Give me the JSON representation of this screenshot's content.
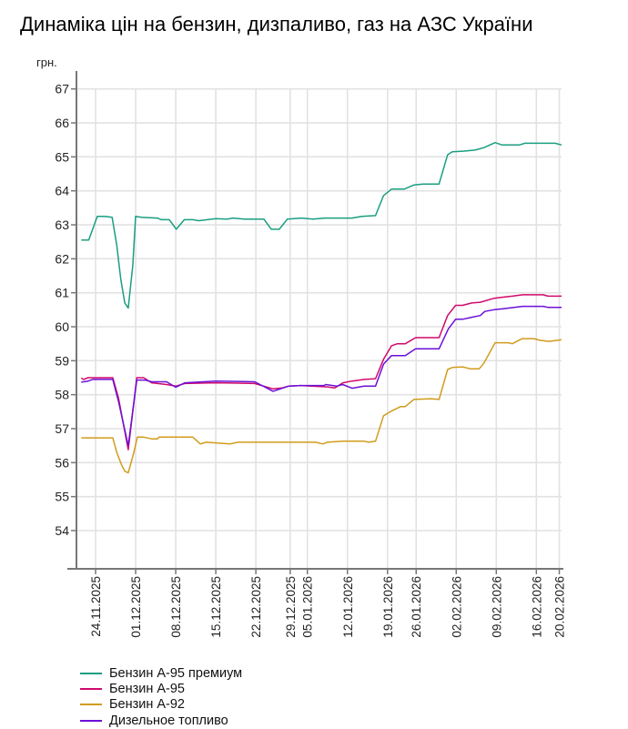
{
  "chart_data": {
    "type": "line",
    "title": "Динаміка цін на бензин, дизпаливо, газ на АЗС України",
    "ylabel": "грн.",
    "xlabel": "",
    "ylim": [
      52.9,
      67.5
    ],
    "yticks": [
      54,
      55,
      56,
      57,
      58,
      59,
      60,
      61,
      62,
      63,
      64,
      65,
      66,
      67
    ],
    "xlim": [
      -2.5,
      81.5
    ],
    "xticks": [
      {
        "x": 0,
        "label": "24.11.2025"
      },
      {
        "x": 7,
        "label": "01.12.2025"
      },
      {
        "x": 14,
        "label": "08.12.2025"
      },
      {
        "x": 21,
        "label": "15.12.2025"
      },
      {
        "x": 28,
        "label": "22.12.2025"
      },
      {
        "x": 34,
        "label": "29.12.2025"
      },
      {
        "x": 37,
        "label": "05.01.2026"
      },
      {
        "x": 44,
        "label": "12.01.2026"
      },
      {
        "x": 51,
        "label": "19.01.2026"
      },
      {
        "x": 56,
        "label": "26.01.2026"
      },
      {
        "x": 63,
        "label": "02.02.2026"
      },
      {
        "x": 70,
        "label": "09.02.2026"
      },
      {
        "x": 77,
        "label": "16.02.2026"
      },
      {
        "x": 81,
        "label": "20.02.2026"
      }
    ],
    "grid": true,
    "legend_position": "bottom-left",
    "series": [
      {
        "name": "Бензин А-95 премиум",
        "color": "#1a9e80",
        "points": [
          [
            -2.5,
            62.55
          ],
          [
            -1.2,
            62.55
          ],
          [
            0.3,
            63.25
          ],
          [
            1.6,
            63.25
          ],
          [
            2.9,
            63.22
          ],
          [
            3.7,
            62.4
          ],
          [
            4.4,
            61.4
          ],
          [
            5.1,
            60.7
          ],
          [
            5.7,
            60.55
          ],
          [
            6.5,
            61.8
          ],
          [
            7,
            63.25
          ],
          [
            8,
            63.22
          ],
          [
            10.8,
            63.2
          ],
          [
            11.5,
            63.15
          ],
          [
            12.9,
            63.15
          ],
          [
            14.1,
            62.87
          ],
          [
            15.5,
            63.15
          ],
          [
            17,
            63.15
          ],
          [
            18,
            63.12
          ],
          [
            21,
            63.18
          ],
          [
            23,
            63.17
          ],
          [
            24,
            63.2
          ],
          [
            26,
            63.17
          ],
          [
            29.4,
            63.17
          ],
          [
            30.7,
            62.87
          ],
          [
            32.1,
            62.87
          ],
          [
            33.5,
            63.17
          ],
          [
            36,
            63.2
          ],
          [
            38,
            63.17
          ],
          [
            40,
            63.2
          ],
          [
            44.8,
            63.2
          ],
          [
            46.5,
            63.25
          ],
          [
            48.9,
            63.27
          ],
          [
            50.3,
            63.86
          ],
          [
            51.7,
            64.05
          ],
          [
            53.9,
            64.05
          ],
          [
            55.6,
            64.17
          ],
          [
            57.2,
            64.2
          ],
          [
            60,
            64.2
          ],
          [
            61.5,
            65.06
          ],
          [
            62.3,
            65.15
          ],
          [
            64.4,
            65.17
          ],
          [
            66.3,
            65.2
          ],
          [
            67.8,
            65.27
          ],
          [
            69.8,
            65.42
          ],
          [
            71,
            65.35
          ],
          [
            74,
            65.35
          ],
          [
            75,
            65.4
          ],
          [
            80.3,
            65.4
          ],
          [
            81.4,
            65.35
          ]
        ]
      },
      {
        "name": "Бензин А-95",
        "color": "#d0096b",
        "points": [
          [
            -2.5,
            58.49
          ],
          [
            -2.1,
            58.45
          ],
          [
            -1.3,
            58.5
          ],
          [
            3,
            58.5
          ],
          [
            4,
            57.9
          ],
          [
            5.7,
            56.38
          ],
          [
            7.2,
            58.5
          ],
          [
            8.4,
            58.5
          ],
          [
            9.8,
            58.35
          ],
          [
            12.4,
            58.3
          ],
          [
            14,
            58.25
          ],
          [
            15.6,
            58.33
          ],
          [
            21,
            58.35
          ],
          [
            27.8,
            58.33
          ],
          [
            31,
            58.17
          ],
          [
            32.6,
            58.2
          ],
          [
            33.7,
            58.25
          ],
          [
            35.8,
            58.27
          ],
          [
            40.5,
            58.23
          ],
          [
            41.8,
            58.2
          ],
          [
            43.2,
            58.35
          ],
          [
            44.8,
            58.4
          ],
          [
            46.9,
            58.45
          ],
          [
            48.9,
            58.47
          ],
          [
            50.3,
            59.04
          ],
          [
            51.7,
            59.44
          ],
          [
            52.7,
            59.5
          ],
          [
            54.1,
            59.5
          ],
          [
            55.9,
            59.68
          ],
          [
            60,
            59.68
          ],
          [
            61.5,
            60.33
          ],
          [
            62.9,
            60.63
          ],
          [
            64.1,
            60.63
          ],
          [
            65.7,
            60.7
          ],
          [
            67.2,
            60.72
          ],
          [
            69.6,
            60.84
          ],
          [
            71.2,
            60.87
          ],
          [
            72.8,
            60.9
          ],
          [
            74.6,
            60.94
          ],
          [
            78.2,
            60.94
          ],
          [
            79,
            60.9
          ],
          [
            81.4,
            60.9
          ]
        ]
      },
      {
        "name": "Бензин А-92",
        "color": "#d19c1d",
        "points": [
          [
            -2.5,
            56.73
          ],
          [
            3,
            56.73
          ],
          [
            3.7,
            56.3
          ],
          [
            4.5,
            55.95
          ],
          [
            5.1,
            55.75
          ],
          [
            5.7,
            55.7
          ],
          [
            6.7,
            56.3
          ],
          [
            7.3,
            56.75
          ],
          [
            8.4,
            56.75
          ],
          [
            9.8,
            56.7
          ],
          [
            10.8,
            56.7
          ],
          [
            11.1,
            56.75
          ],
          [
            17,
            56.75
          ],
          [
            18.3,
            56.55
          ],
          [
            19.3,
            56.6
          ],
          [
            23.5,
            56.55
          ],
          [
            24.9,
            56.6
          ],
          [
            38.4,
            56.6
          ],
          [
            39.7,
            56.55
          ],
          [
            40.5,
            56.6
          ],
          [
            43.2,
            56.63
          ],
          [
            46.9,
            56.63
          ],
          [
            47.7,
            56.6
          ],
          [
            48.9,
            56.63
          ],
          [
            50.3,
            57.38
          ],
          [
            51.7,
            57.52
          ],
          [
            53.3,
            57.65
          ],
          [
            54.1,
            57.65
          ],
          [
            55.6,
            57.86
          ],
          [
            58.6,
            57.88
          ],
          [
            60,
            57.86
          ],
          [
            61.5,
            58.74
          ],
          [
            62.3,
            58.8
          ],
          [
            64.1,
            58.82
          ],
          [
            65.5,
            58.76
          ],
          [
            67,
            58.76
          ],
          [
            67.8,
            58.92
          ],
          [
            69.8,
            59.53
          ],
          [
            72.1,
            59.53
          ],
          [
            72.8,
            59.5
          ],
          [
            74.5,
            59.65
          ],
          [
            76.6,
            59.65
          ],
          [
            77.6,
            59.6
          ],
          [
            79.2,
            59.57
          ],
          [
            81.4,
            59.62
          ]
        ]
      },
      {
        "name": "Дизельное топливо",
        "color": "#6b10d8",
        "points": [
          [
            -2.5,
            58.37
          ],
          [
            -1.3,
            58.4
          ],
          [
            -0.5,
            58.45
          ],
          [
            3,
            58.45
          ],
          [
            4,
            57.8
          ],
          [
            5.7,
            56.5
          ],
          [
            7.2,
            58.43
          ],
          [
            8.7,
            58.43
          ],
          [
            9.8,
            58.38
          ],
          [
            12.4,
            58.38
          ],
          [
            14,
            58.22
          ],
          [
            15.6,
            58.35
          ],
          [
            21,
            58.4
          ],
          [
            27.8,
            58.38
          ],
          [
            31,
            58.1
          ],
          [
            33.7,
            58.25
          ],
          [
            35.8,
            58.27
          ],
          [
            39.9,
            58.27
          ],
          [
            40.2,
            58.3
          ],
          [
            42.1,
            58.25
          ],
          [
            43.2,
            58.3
          ],
          [
            44.8,
            58.19
          ],
          [
            46.9,
            58.25
          ],
          [
            48.9,
            58.25
          ],
          [
            50.3,
            58.9
          ],
          [
            51.7,
            59.15
          ],
          [
            54.1,
            59.15
          ],
          [
            55.9,
            59.35
          ],
          [
            60,
            59.35
          ],
          [
            61.6,
            59.93
          ],
          [
            62.9,
            60.22
          ],
          [
            64.1,
            60.22
          ],
          [
            65.7,
            60.28
          ],
          [
            67.2,
            60.33
          ],
          [
            68,
            60.45
          ],
          [
            69.6,
            60.5
          ],
          [
            71.2,
            60.53
          ],
          [
            74.6,
            60.6
          ],
          [
            78.2,
            60.6
          ],
          [
            79,
            60.57
          ],
          [
            81.4,
            60.57
          ]
        ]
      }
    ]
  }
}
